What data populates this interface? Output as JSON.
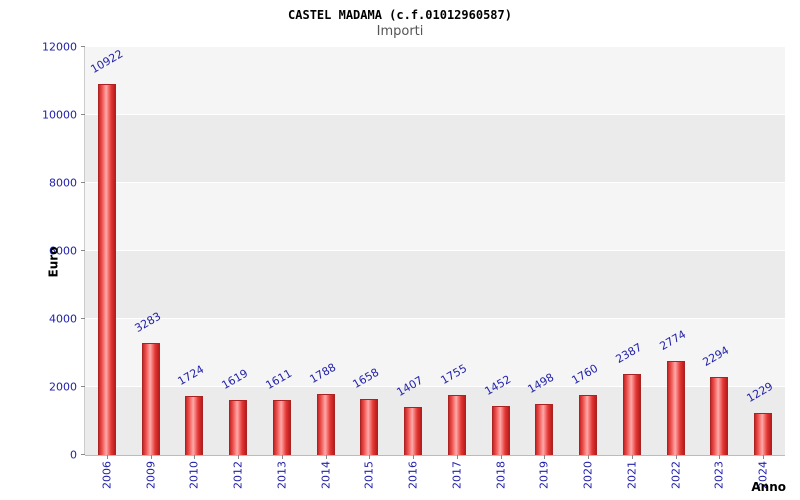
{
  "chart": {
    "title": "CASTEL MADAMA (c.f.01012960587)",
    "subtitle": "Importi",
    "ylabel": "Euro",
    "xlabel": "Anno"
  },
  "chart_data": {
    "type": "bar",
    "title": "CASTEL MADAMA (c.f.01012960587)",
    "subtitle": "Importi",
    "xlabel": "Anno",
    "ylabel": "Euro",
    "categories": [
      "2006",
      "2009",
      "2010",
      "2012",
      "2013",
      "2014",
      "2015",
      "2016",
      "2017",
      "2018",
      "2019",
      "2020",
      "2021",
      "2022",
      "2023",
      "2024"
    ],
    "values": [
      10922,
      3283,
      1724,
      1619,
      1611,
      1788,
      1658,
      1407,
      1755,
      1452,
      1498,
      1760,
      2387,
      2774,
      2294,
      1229
    ],
    "ylim": [
      0,
      12000
    ],
    "yticks": [
      0,
      2000,
      4000,
      6000,
      8000,
      10000,
      12000
    ],
    "grid": "horizontal-white-lines-on-alternating-gray-bands",
    "legend": "none",
    "colors": {
      "bar_dark": "#b71c1c",
      "bar_light": "#ffaaaa",
      "bar_outline": "#aa2222",
      "tick_label": "#2222aa",
      "value_label": "#2222aa",
      "title": "#000000",
      "subtitle": "#555555",
      "band_a": "#ebebeb",
      "band_b": "#f5f5f5",
      "gridline": "#ffffff"
    }
  }
}
